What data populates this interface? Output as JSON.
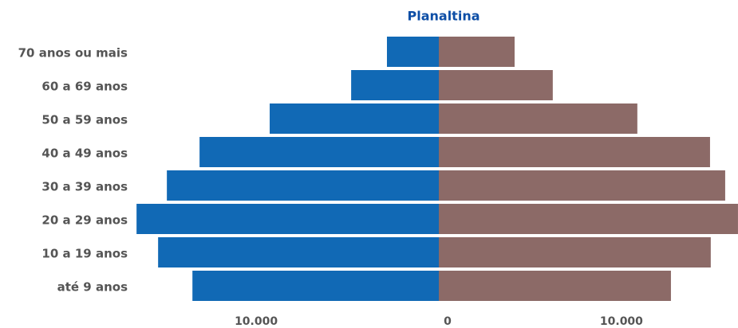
{
  "chart_data": {
    "type": "pyramid",
    "title": "Planaltina",
    "categories": [
      "70 anos ou mais",
      "60 a 69 anos",
      "50 a 59 anos",
      "40 a 49 anos",
      "30 a 39 anos",
      "20 a 29 anos",
      "10 a 19 anos",
      "até 9 anos"
    ],
    "series": [
      {
        "side": "left",
        "color": "#1169b5",
        "values": [
          2840,
          4800,
          9260,
          13100,
          14890,
          16550,
          15370,
          13490
        ]
      },
      {
        "side": "right",
        "color": "#8c6a67",
        "values": [
          4150,
          6240,
          10870,
          14850,
          15680,
          16380,
          14890,
          12710
        ]
      }
    ],
    "xlim": [
      0,
      16600
    ],
    "xticks": [
      0,
      {
        "value": 10000,
        "label": "10.000"
      }
    ]
  }
}
